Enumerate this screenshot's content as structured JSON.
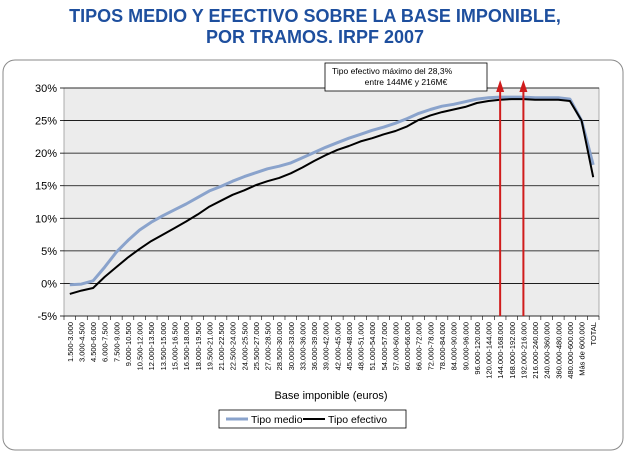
{
  "title_lines": [
    "TIPOS MEDIO Y EFECTIVO SOBRE LA BASE IMPONIBLE,",
    "POR TRAMOS. IRPF 2007"
  ],
  "chart_data": {
    "type": "line",
    "title": "TIPOS MEDIO Y EFECTIVO SOBRE LA BASE IMPONIBLE, POR TRAMOS. IRPF 2007",
    "xlabel": "Base imponible (euros)",
    "ylabel": "",
    "ylim": [
      -5,
      30
    ],
    "yticks": [
      -5,
      0,
      5,
      10,
      15,
      20,
      25,
      30
    ],
    "ytick_labels": [
      "-5%",
      "0%",
      "5%",
      "10%",
      "15%",
      "20%",
      "25%",
      "30%"
    ],
    "grid": true,
    "legend": "bottom",
    "categories": [
      "1.500-3.000",
      "3.000-4.500",
      "4.500-6.000",
      "6.000-7.500",
      "7.500-9.000",
      "9.000-10.500",
      "10.500-12.000",
      "12.000-13.500",
      "13.500-15.000",
      "15.000-16.500",
      "16.500-18.000",
      "18.000-19.500",
      "19.500-21.000",
      "21.000-22.500",
      "22.500-24.000",
      "24.000-25.500",
      "25.500-27.000",
      "27.000-28.500",
      "28.500-30.000",
      "30.000-33.000",
      "33.000-36.000",
      "36.000-39.000",
      "39.000-42.000",
      "42.000-45.000",
      "45.000-48.000",
      "48.000-51.000",
      "51.000-54.000",
      "54.000-57.000",
      "57.000-60.000",
      "60.000-66.000",
      "66.000-72.000",
      "72.000-78.000",
      "78.000-84.000",
      "84.000-90.000",
      "90.000-96.000",
      "96.000-120.000",
      "120.000-144.000",
      "144.000-168.000",
      "168.000-192.000",
      "192.000-216.000",
      "216.000-240.000",
      "240.000-360.000",
      "360.000-480.000",
      "480.000-600.000",
      "Más de 600.000",
      "TOTAL"
    ],
    "series": [
      {
        "name": "Tipo medio",
        "color": "#8aa3cc",
        "values": [
          -0.2,
          -0.1,
          0.4,
          2.5,
          4.8,
          6.6,
          8.2,
          9.4,
          10.4,
          11.3,
          12.2,
          13.2,
          14.2,
          14.9,
          15.7,
          16.4,
          17.0,
          17.6,
          18.0,
          18.5,
          19.3,
          20.1,
          20.9,
          21.6,
          22.3,
          22.9,
          23.5,
          24.0,
          24.6,
          25.3,
          26.1,
          26.7,
          27.2,
          27.5,
          27.9,
          28.3,
          28.5,
          28.6,
          28.6,
          28.6,
          28.5,
          28.5,
          28.5,
          28.3,
          25.0,
          18.2
        ]
      },
      {
        "name": "Tipo efectivo",
        "color": "#000000",
        "values": [
          -1.6,
          -1.1,
          -0.7,
          1.0,
          2.5,
          4.0,
          5.3,
          6.5,
          7.5,
          8.5,
          9.5,
          10.6,
          11.8,
          12.7,
          13.6,
          14.3,
          15.1,
          15.7,
          16.2,
          16.9,
          17.8,
          18.8,
          19.7,
          20.5,
          21.1,
          21.8,
          22.3,
          22.9,
          23.4,
          24.1,
          25.1,
          25.8,
          26.3,
          26.7,
          27.1,
          27.7,
          28.0,
          28.2,
          28.3,
          28.3,
          28.2,
          28.2,
          28.2,
          28.0,
          25.0,
          16.3
        ]
      }
    ],
    "annotations": [
      {
        "lines": [
          "Tipo efectivo máximo del 28,3%",
          "entre 144M€ y 216M€"
        ],
        "color": "#000000"
      }
    ],
    "arrow_color": "#d01c1c",
    "arrows_at": [
      "144.000-168.000",
      "192.000-216.000"
    ]
  },
  "colors": {
    "title": "#1e4f9e",
    "plot_bg": "#ececec",
    "grid": "#000000"
  }
}
